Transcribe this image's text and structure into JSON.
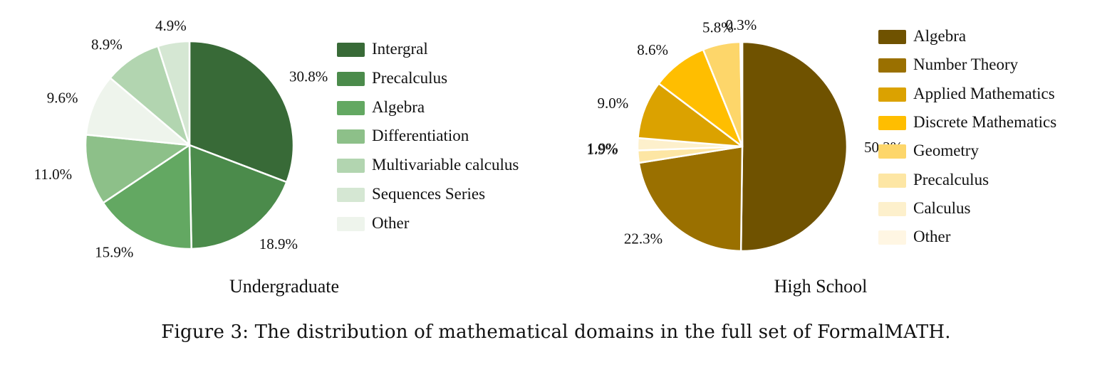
{
  "caption": "Figure 3: The distribution of mathematical domains in the full set of FormalMATH.",
  "chart_data": [
    {
      "type": "pie",
      "title": "Undergraduate",
      "slices": [
        {
          "label": "Intergral",
          "value": 30.8,
          "value_label": "30.8%",
          "color": "#386a37"
        },
        {
          "label": "Precalculus",
          "value": 18.9,
          "value_label": "18.9%",
          "color": "#4b8b4b"
        },
        {
          "label": "Algebra",
          "value": 15.9,
          "value_label": "15.9%",
          "color": "#63a862"
        },
        {
          "label": "Differentiation",
          "value": 11.0,
          "value_label": "11.0%",
          "color": "#8dc089"
        },
        {
          "label": "Multivariable calculus",
          "value": 9.6,
          "value_label": "9.6%",
          "color": "#eef4ec"
        },
        {
          "label": "Sequences Series",
          "value": 8.9,
          "value_label": "8.9%",
          "color": "#b2d5b0"
        },
        {
          "label": "Other",
          "value": 4.9,
          "value_label": "4.9%",
          "color": "#d5e7d3"
        }
      ],
      "legend": [
        {
          "label": "Intergral",
          "color": "#386a37"
        },
        {
          "label": "Precalculus",
          "color": "#4b8b4b"
        },
        {
          "label": "Algebra",
          "color": "#63a862"
        },
        {
          "label": "Differentiation",
          "color": "#8dc089"
        },
        {
          "label": "Multivariable calculus",
          "color": "#b2d5b0"
        },
        {
          "label": "Sequences Series",
          "color": "#d5e7d3"
        },
        {
          "label": "Other",
          "color": "#eef4ec"
        }
      ]
    },
    {
      "type": "pie",
      "title": "High School",
      "slices": [
        {
          "label": "Algebra",
          "value": 50.2,
          "value_label": "50.2%",
          "color": "#6f5200"
        },
        {
          "label": "Number Theory",
          "value": 22.3,
          "value_label": "22.3%",
          "color": "#9a7000"
        },
        {
          "label": "Precalculus",
          "value": 1.9,
          "value_label": "1.9%",
          "color": "#fde6a4"
        },
        {
          "label": "Calculus",
          "value": 1.9,
          "value_label": "1.9%",
          "color": "#fdf0cc"
        },
        {
          "label": "Applied Mathematics",
          "value": 9.0,
          "value_label": "9.0%",
          "color": "#dba200"
        },
        {
          "label": "Discrete Mathematics",
          "value": 8.6,
          "value_label": "8.6%",
          "color": "#ffbe00"
        },
        {
          "label": "Geometry",
          "value": 5.8,
          "value_label": "5.8%",
          "color": "#fdd66a"
        },
        {
          "label": "Other",
          "value": 0.3,
          "value_label": "0.3%",
          "color": "#fff6e3"
        }
      ],
      "legend": [
        {
          "label": "Algebra",
          "color": "#6f5200"
        },
        {
          "label": "Number Theory",
          "color": "#9a7000"
        },
        {
          "label": "Applied Mathematics",
          "color": "#dba200"
        },
        {
          "label": "Discrete Mathematics",
          "color": "#ffbe00"
        },
        {
          "label": "Geometry",
          "color": "#fdd66a"
        },
        {
          "label": "Precalculus",
          "color": "#fde6a4"
        },
        {
          "label": "Calculus",
          "color": "#fdf0cc"
        },
        {
          "label": "Other",
          "color": "#fff6e3"
        }
      ]
    }
  ]
}
